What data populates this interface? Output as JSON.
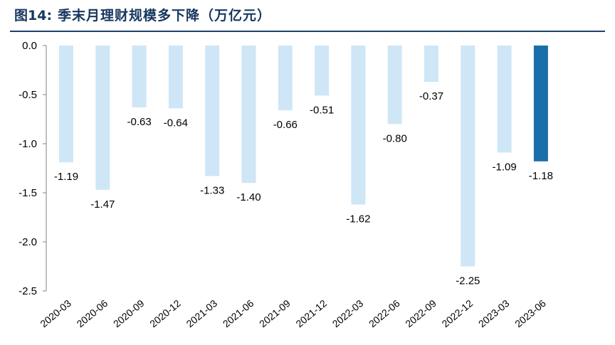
{
  "header": {
    "figure_number": "图14:",
    "title": "季末月理财规模多下降（万亿元）"
  },
  "chart_data": {
    "type": "bar",
    "title": "季末月理财规模多下降（万亿元）",
    "xlabel": "",
    "ylabel": "",
    "ylim": [
      -2.5,
      0.0
    ],
    "yticks": [
      "0.0",
      "-0.5",
      "-1.0",
      "-1.5",
      "-2.0",
      "-2.5"
    ],
    "ytick_values": [
      0.0,
      -0.5,
      -1.0,
      -1.5,
      -2.0,
      -2.5
    ],
    "categories": [
      "2020-03",
      "2020-06",
      "2020-09",
      "2020-12",
      "2021-03",
      "2021-06",
      "2021-09",
      "2021-12",
      "2022-03",
      "2022-06",
      "2022-09",
      "2022-12",
      "2023-03",
      "2023-06"
    ],
    "values": [
      -1.19,
      -1.47,
      -0.63,
      -0.64,
      -1.33,
      -1.4,
      -0.66,
      -0.51,
      -1.62,
      -0.8,
      -0.37,
      -2.25,
      -1.09,
      -1.18
    ],
    "data_labels": [
      "-1.19",
      "-1.47",
      "-0.63",
      "-0.64",
      "-1.33",
      "-1.40",
      "-0.66",
      "-0.51",
      "-1.62",
      "-0.80",
      "-0.37",
      "-2.25",
      "-1.09",
      "-1.18"
    ],
    "colors": {
      "default": "#cfe6f6",
      "highlight": "#1b6fa8"
    },
    "highlight_index": 13,
    "grid": false
  }
}
